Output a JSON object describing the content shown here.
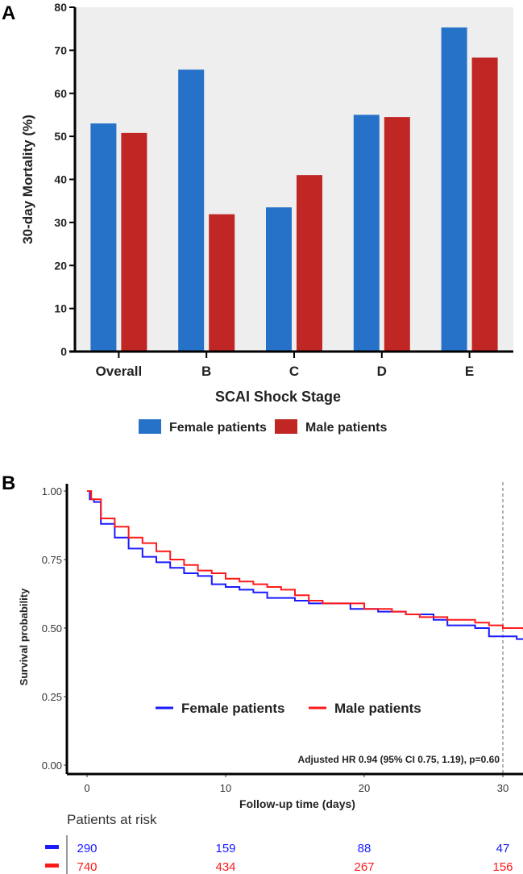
{
  "chart_data": [
    {
      "panel": "A",
      "type": "bar",
      "title": "",
      "xlabel": "SCAI Shock Stage",
      "ylabel": "30-day Mortality (%)",
      "ylim": [
        0,
        80
      ],
      "yticks": [
        0,
        10,
        20,
        30,
        40,
        50,
        60,
        70,
        80
      ],
      "categories": [
        "Overall",
        "B",
        "C",
        "D",
        "E"
      ],
      "series": [
        {
          "name": "Female patients",
          "color": "#2672c9",
          "values": [
            53.0,
            65.5,
            33.5,
            55.0,
            75.3
          ]
        },
        {
          "name": "Male patients",
          "color": "#bf2624",
          "values": [
            50.8,
            31.9,
            41.0,
            54.5,
            68.3
          ]
        }
      ],
      "legend": "bottom",
      "grid": false,
      "background": "#eeeeee"
    },
    {
      "panel": "B",
      "type": "line",
      "subtype": "kaplan-meier-step",
      "xlabel": "Follow-up time (days)",
      "ylabel": "Survival probability",
      "xlim": [
        -1.5,
        31.5
      ],
      "ylim": [
        0,
        1.05
      ],
      "xticks": [
        0,
        10,
        20,
        30
      ],
      "yticks": [
        "0.00",
        "0.25",
        "0.50",
        "0.75",
        "1.00"
      ],
      "reference_line_x": 30,
      "annotation": "Adjusted HR 0.94 (95% CI 0.75, 1.19), p=0.60",
      "legend": "center",
      "series": [
        {
          "name": "Female patients",
          "color": "#1a1aff",
          "x": [
            0,
            0.2,
            0.5,
            1,
            1,
            2,
            2,
            3,
            3,
            4,
            4,
            5,
            5,
            6,
            7,
            7,
            8,
            9,
            9,
            10,
            11,
            12,
            13,
            15,
            16,
            18,
            19,
            19,
            21,
            23,
            25,
            26,
            26,
            28,
            29,
            31,
            31.5
          ],
          "y": [
            1,
            0.97,
            0.96,
            0.94,
            0.88,
            0.87,
            0.83,
            0.81,
            0.79,
            0.78,
            0.76,
            0.76,
            0.74,
            0.72,
            0.72,
            0.7,
            0.69,
            0.69,
            0.66,
            0.65,
            0.64,
            0.63,
            0.61,
            0.6,
            0.59,
            0.59,
            0.58,
            0.57,
            0.56,
            0.55,
            0.53,
            0.53,
            0.51,
            0.5,
            0.47,
            0.46,
            0.46
          ]
        },
        {
          "name": "Male patients",
          "color": "#ff1a1a",
          "x": [
            0,
            0.3,
            1,
            1,
            2,
            2,
            3,
            3,
            4,
            4,
            5,
            5,
            6,
            6,
            7,
            7,
            8,
            8,
            9,
            10,
            11,
            12,
            13,
            14,
            15,
            16,
            17,
            18,
            20,
            22,
            23,
            24,
            26,
            28,
            29,
            30,
            31.5
          ],
          "y": [
            1,
            0.97,
            0.95,
            0.9,
            0.9,
            0.87,
            0.86,
            0.83,
            0.83,
            0.81,
            0.8,
            0.78,
            0.78,
            0.75,
            0.74,
            0.73,
            0.72,
            0.71,
            0.7,
            0.68,
            0.67,
            0.66,
            0.65,
            0.64,
            0.62,
            0.6,
            0.59,
            0.59,
            0.57,
            0.56,
            0.55,
            0.54,
            0.53,
            0.52,
            0.51,
            0.5,
            0.49
          ]
        }
      ],
      "risk_table": {
        "title": "Patients at risk",
        "xlabel": "Follow-up time (days)",
        "times": [
          0,
          10,
          20,
          30
        ],
        "rows": [
          {
            "name": "Female patients",
            "color": "#1a1aff",
            "values": [
              "290",
              "159",
              "88",
              "47"
            ]
          },
          {
            "name": "Male patients",
            "color": "#ff1a1a",
            "values": [
              "740",
              "434",
              "267",
              "156"
            ]
          }
        ]
      }
    }
  ],
  "panel_labels": [
    "A",
    "B"
  ]
}
